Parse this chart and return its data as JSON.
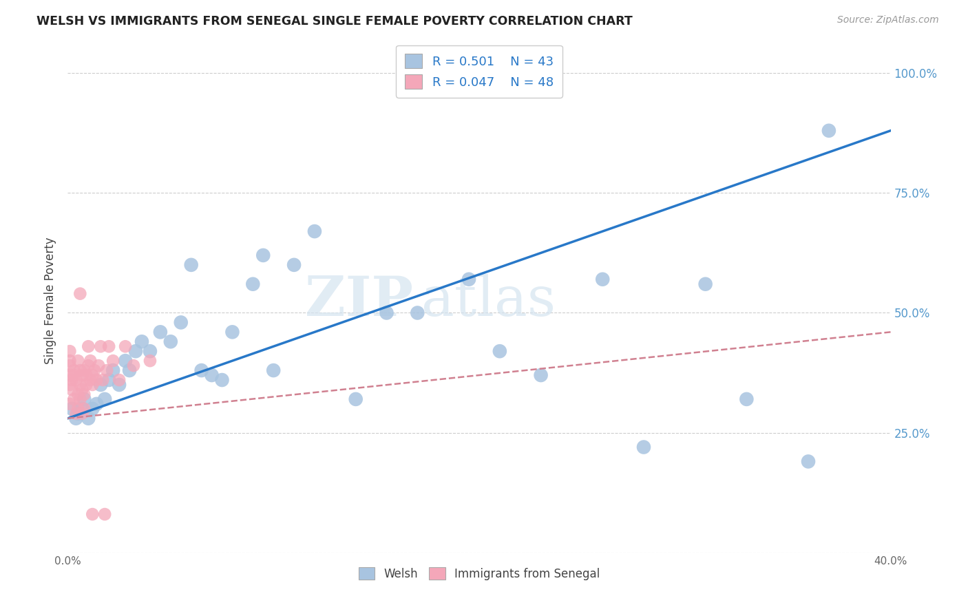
{
  "title": "WELSH VS IMMIGRANTS FROM SENEGAL SINGLE FEMALE POVERTY CORRELATION CHART",
  "source": "Source: ZipAtlas.com",
  "ylabel": "Single Female Poverty",
  "xlim": [
    0.0,
    0.4
  ],
  "ylim": [
    0.0,
    1.05
  ],
  "xticks": [
    0.0,
    0.05,
    0.1,
    0.15,
    0.2,
    0.25,
    0.3,
    0.35,
    0.4
  ],
  "yticks": [
    0.0,
    0.25,
    0.5,
    0.75,
    1.0
  ],
  "xtick_labels": [
    "0.0%",
    "",
    "",
    "",
    "",
    "",
    "",
    "",
    "40.0%"
  ],
  "ytick_labels": [
    "",
    "25.0%",
    "50.0%",
    "75.0%",
    "100.0%"
  ],
  "welsh_color": "#a8c4e0",
  "senegal_color": "#f4a7b9",
  "welsh_line_color": "#2878c8",
  "senegal_line_color": "#d08090",
  "R_welsh": 0.501,
  "N_welsh": 43,
  "R_senegal": 0.047,
  "N_senegal": 48,
  "watermark_zip": "ZIP",
  "watermark_atlas": "atlas",
  "background_color": "#ffffff",
  "grid_color": "#cccccc",
  "welsh_line_x0": 0.0,
  "welsh_line_y0": 0.28,
  "welsh_line_x1": 0.4,
  "welsh_line_y1": 0.88,
  "senegal_line_x0": 0.0,
  "senegal_line_y0": 0.28,
  "senegal_line_x1": 0.4,
  "senegal_line_y1": 0.46,
  "welsh_x": [
    0.002,
    0.004,
    0.005,
    0.007,
    0.008,
    0.01,
    0.012,
    0.014,
    0.016,
    0.018,
    0.02,
    0.022,
    0.025,
    0.028,
    0.03,
    0.033,
    0.036,
    0.04,
    0.045,
    0.05,
    0.055,
    0.06,
    0.065,
    0.07,
    0.075,
    0.08,
    0.09,
    0.095,
    0.1,
    0.11,
    0.12,
    0.14,
    0.155,
    0.17,
    0.195,
    0.21,
    0.23,
    0.26,
    0.28,
    0.31,
    0.33,
    0.37,
    0.36
  ],
  "welsh_y": [
    0.3,
    0.28,
    0.29,
    0.3,
    0.32,
    0.28,
    0.3,
    0.31,
    0.35,
    0.32,
    0.36,
    0.38,
    0.35,
    0.4,
    0.38,
    0.42,
    0.44,
    0.42,
    0.46,
    0.44,
    0.48,
    0.6,
    0.38,
    0.37,
    0.36,
    0.46,
    0.56,
    0.62,
    0.38,
    0.6,
    0.67,
    0.32,
    0.5,
    0.5,
    0.57,
    0.42,
    0.37,
    0.57,
    0.22,
    0.56,
    0.32,
    0.88,
    0.19
  ],
  "senegal_x": [
    0.001,
    0.001,
    0.002,
    0.002,
    0.003,
    0.003,
    0.003,
    0.004,
    0.004,
    0.005,
    0.005,
    0.005,
    0.006,
    0.006,
    0.006,
    0.007,
    0.007,
    0.007,
    0.008,
    0.008,
    0.008,
    0.009,
    0.009,
    0.01,
    0.01,
    0.011,
    0.011,
    0.012,
    0.012,
    0.013,
    0.014,
    0.015,
    0.016,
    0.017,
    0.019,
    0.02,
    0.022,
    0.025,
    0.028,
    0.032,
    0.04,
    0.018,
    0.006,
    0.001,
    0.001,
    0.001,
    0.001,
    0.012
  ],
  "senegal_y": [
    0.35,
    0.31,
    0.36,
    0.34,
    0.38,
    0.37,
    0.32,
    0.36,
    0.29,
    0.4,
    0.33,
    0.3,
    0.38,
    0.35,
    0.32,
    0.37,
    0.34,
    0.29,
    0.33,
    0.38,
    0.3,
    0.37,
    0.35,
    0.43,
    0.39,
    0.36,
    0.4,
    0.37,
    0.35,
    0.38,
    0.36,
    0.39,
    0.43,
    0.36,
    0.38,
    0.43,
    0.4,
    0.36,
    0.43,
    0.39,
    0.4,
    0.08,
    0.54,
    0.42,
    0.4,
    0.39,
    0.37,
    0.08
  ]
}
